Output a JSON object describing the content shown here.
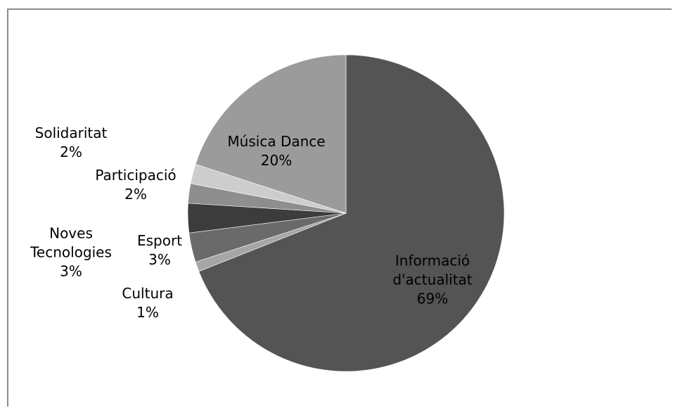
{
  "chart_data": {
    "type": "pie",
    "slices": [
      {
        "name": "Informació d'actualitat",
        "label_lines": [
          "Informació",
          "d'actualitat",
          "69%"
        ],
        "value": 69,
        "color": "#545454"
      },
      {
        "name": "Cultura",
        "label_lines": [
          "Cultura",
          "1%"
        ],
        "value": 1,
        "color": "#a6a6a6"
      },
      {
        "name": "Esport",
        "label_lines": [
          "Esport",
          "3%"
        ],
        "value": 3,
        "color": "#6a6a6a"
      },
      {
        "name": "Noves Tecnologies",
        "label_lines": [
          "Noves",
          "Tecnologies",
          "3%"
        ],
        "value": 3,
        "color": "#3c3c3c"
      },
      {
        "name": "Participació",
        "label_lines": [
          "Participació",
          "2%"
        ],
        "value": 2,
        "color": "#8e8e8e"
      },
      {
        "name": "Solidaritat",
        "label_lines": [
          "Solidaritat",
          "2%"
        ],
        "value": 2,
        "color": "#cdcdcd"
      },
      {
        "name": "Música Dance",
        "label_lines": [
          "Música Dance",
          "20%"
        ],
        "value": 20,
        "color": "#9b9b9b"
      }
    ]
  }
}
